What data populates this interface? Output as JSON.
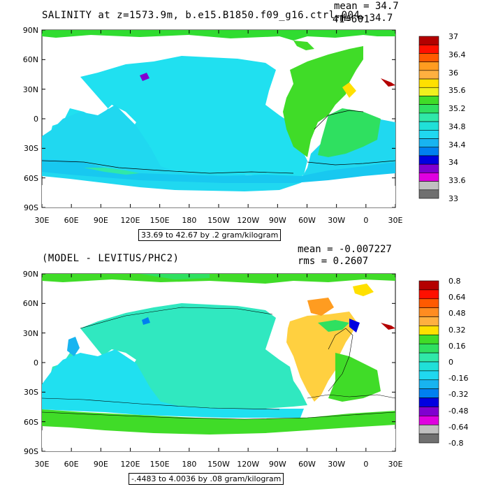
{
  "top_panel": {
    "title": "SALINITY at z=1573.9m, b.e15.B1850.f09_g16.ctrl.004.",
    "title_overlap": "41=601",
    "mean_label": "mean = 34.7",
    "rms_label": "rms = 34.7",
    "range_caption": "33.69 to 42.67 by .2 gram/kilogram",
    "lat_ticks": [
      "90N",
      "60N",
      "30N",
      "0",
      "30S",
      "60S",
      "90S"
    ],
    "lon_ticks": [
      "30E",
      "60E",
      "90E",
      "120E",
      "150E",
      "180",
      "150W",
      "120W",
      "90W",
      "60W",
      "30W",
      "0",
      "30E"
    ],
    "colorbar_labels": [
      "37",
      "36.4",
      "36",
      "35.6",
      "35.2",
      "34.8",
      "34.4",
      "34",
      "33.6",
      "33"
    ],
    "colorbar_colors": [
      "#b40000",
      "#ff1000",
      "#ff5a00",
      "#ff9c20",
      "#ffb040",
      "#ffe000",
      "#f0f01e",
      "#40dc28",
      "#2fe060",
      "#30e8a8",
      "#20e0d8",
      "#20d8f0",
      "#18b4f0",
      "#0080f0",
      "#0000e0",
      "#8000d0",
      "#e000e0",
      "#c0c0c0",
      "#707070"
    ]
  },
  "bottom_panel": {
    "title": "(MODEL - LEVITUS/PHC2)",
    "mean_label": "mean = -0.007227",
    "rms_label": "rms = 0.2607",
    "range_caption": "-.4483 to 4.0036 by .08 gram/kilogram",
    "lat_ticks": [
      "90N",
      "60N",
      "30N",
      "0",
      "30S",
      "60S",
      "90S"
    ],
    "lon_ticks": [
      "30E",
      "60E",
      "90E",
      "120E",
      "150E",
      "180",
      "150W",
      "120W",
      "90W",
      "60W",
      "30W",
      "0",
      "30E"
    ],
    "colorbar_labels": [
      "0.8",
      "0.64",
      "0.48",
      "0.32",
      "0.16",
      "0",
      "-0.16",
      "-0.32",
      "-0.48",
      "-0.64",
      "-0.8"
    ],
    "colorbar_colors": [
      "#b40000",
      "#ff1000",
      "#ff5a00",
      "#ff8c20",
      "#ffb040",
      "#ffe000",
      "#40dc28",
      "#2fe060",
      "#30e8a8",
      "#20e0d8",
      "#20d8f0",
      "#18b4f0",
      "#0080f0",
      "#0000e0",
      "#8000d0",
      "#e000e0",
      "#c0c0c0",
      "#707070"
    ]
  }
}
